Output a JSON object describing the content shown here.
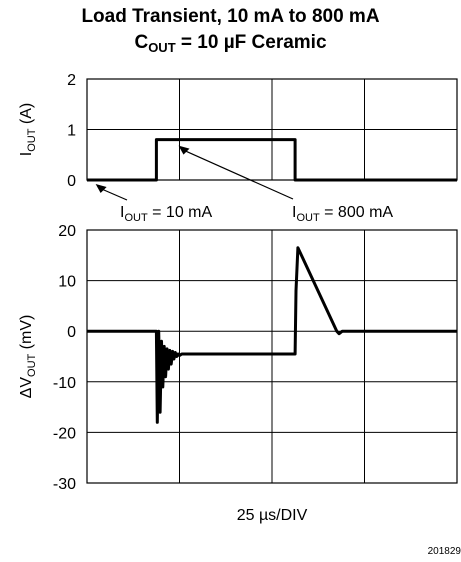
{
  "title_parts": {
    "line1": "Load Transient, 10 mA to 800 mA",
    "line2_pre": "C",
    "line2_sub": "OUT",
    "line2_post": " = 10 µF Ceramic"
  },
  "figure_id": "201829",
  "chart_data": [
    {
      "type": "line",
      "ylabel_main": "I",
      "ylabel_sub": "OUT",
      "ylabel_unit": " (A)",
      "ylim": [
        0,
        2
      ],
      "yticks": [
        "2",
        "1",
        "0"
      ],
      "xlim": [
        0,
        8
      ],
      "grid": true,
      "series": [
        {
          "x": [
            0,
            1.5,
            1.5,
            4.5,
            4.5,
            8
          ],
          "y": [
            0,
            0,
            0.8,
            0.8,
            0,
            0
          ]
        }
      ],
      "annotations": [
        {
          "pre": "I",
          "sub": "OUT",
          "post": " = 10 mA",
          "points_to": [
            0.1,
            0
          ]
        },
        {
          "pre": "I",
          "sub": "OUT",
          "post": " = 800 mA",
          "points_to": [
            2.8,
            0.8
          ]
        }
      ]
    },
    {
      "type": "line",
      "ylabel_main": "ΔV",
      "ylabel_sub": "OUT",
      "ylabel_unit": " (mV)",
      "ylim": [
        -30,
        20
      ],
      "yticks": [
        "20",
        "10",
        "0",
        "-10",
        "-20",
        "-30"
      ],
      "xlabel": "25 µs/DIV",
      "xlim": [
        0,
        8
      ],
      "grid": true,
      "series": [
        {
          "x": [
            0,
            1.5,
            1.52,
            1.55,
            1.58,
            1.61,
            1.64,
            1.67,
            1.7,
            1.73,
            1.76,
            1.79,
            1.82,
            1.85,
            1.88,
            1.91,
            1.94,
            1.97,
            2.0,
            2.05,
            4.5,
            4.52,
            4.56,
            5.4,
            5.45,
            5.52,
            5.6,
            8
          ],
          "y": [
            0,
            0,
            -18,
            0,
            -16,
            -2,
            -11,
            -3,
            -9,
            -3.5,
            -7.5,
            -3.8,
            -6.5,
            -4,
            -5.5,
            -4.2,
            -5,
            -4.5,
            -4.8,
            -4.5,
            -4.5,
            8,
            16.5,
            0,
            -0.5,
            0,
            0,
            0
          ]
        }
      ]
    }
  ]
}
